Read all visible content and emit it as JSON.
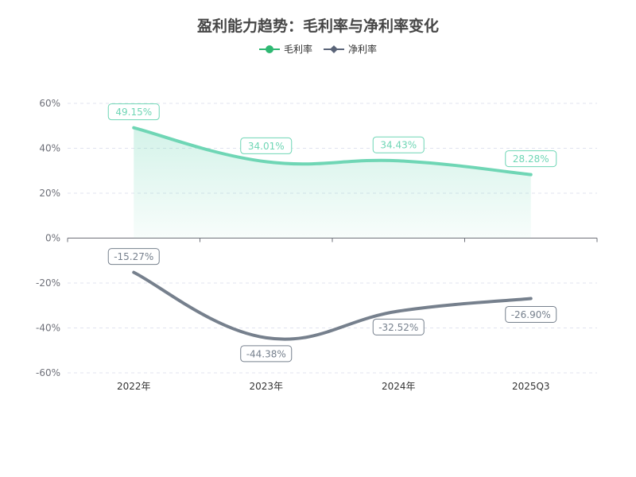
{
  "chart_data": {
    "type": "line",
    "title": "盈利能力趋势：毛利率与净利率变化",
    "categories": [
      "2022年",
      "2023年",
      "2024年",
      "2025Q3"
    ],
    "series": [
      {
        "name": "毛利率",
        "values": [
          49.15,
          34.01,
          34.43,
          28.28
        ],
        "labels": [
          "49.15%",
          "34.01%",
          "34.43%",
          "28.28%"
        ],
        "color": "#6fd6b5",
        "legend_color": "#2eb872",
        "marker": "circle",
        "area": true
      },
      {
        "name": "净利率",
        "values": [
          -15.27,
          -44.38,
          -32.52,
          -26.9
        ],
        "labels": [
          "-15.27%",
          "-44.38%",
          "-32.52%",
          "-26.90%"
        ],
        "color": "#76808d",
        "legend_color": "#5a6478",
        "marker": "diamond",
        "area": false
      }
    ],
    "ylim": [
      -60,
      60
    ],
    "yticks": [
      "-60%",
      "-40%",
      "-20%",
      "0%",
      "20%",
      "40%",
      "60%"
    ],
    "ytick_values": [
      -60,
      -40,
      -20,
      0,
      20,
      40,
      60
    ],
    "grid": true,
    "smooth": true,
    "legend_position": "top"
  }
}
